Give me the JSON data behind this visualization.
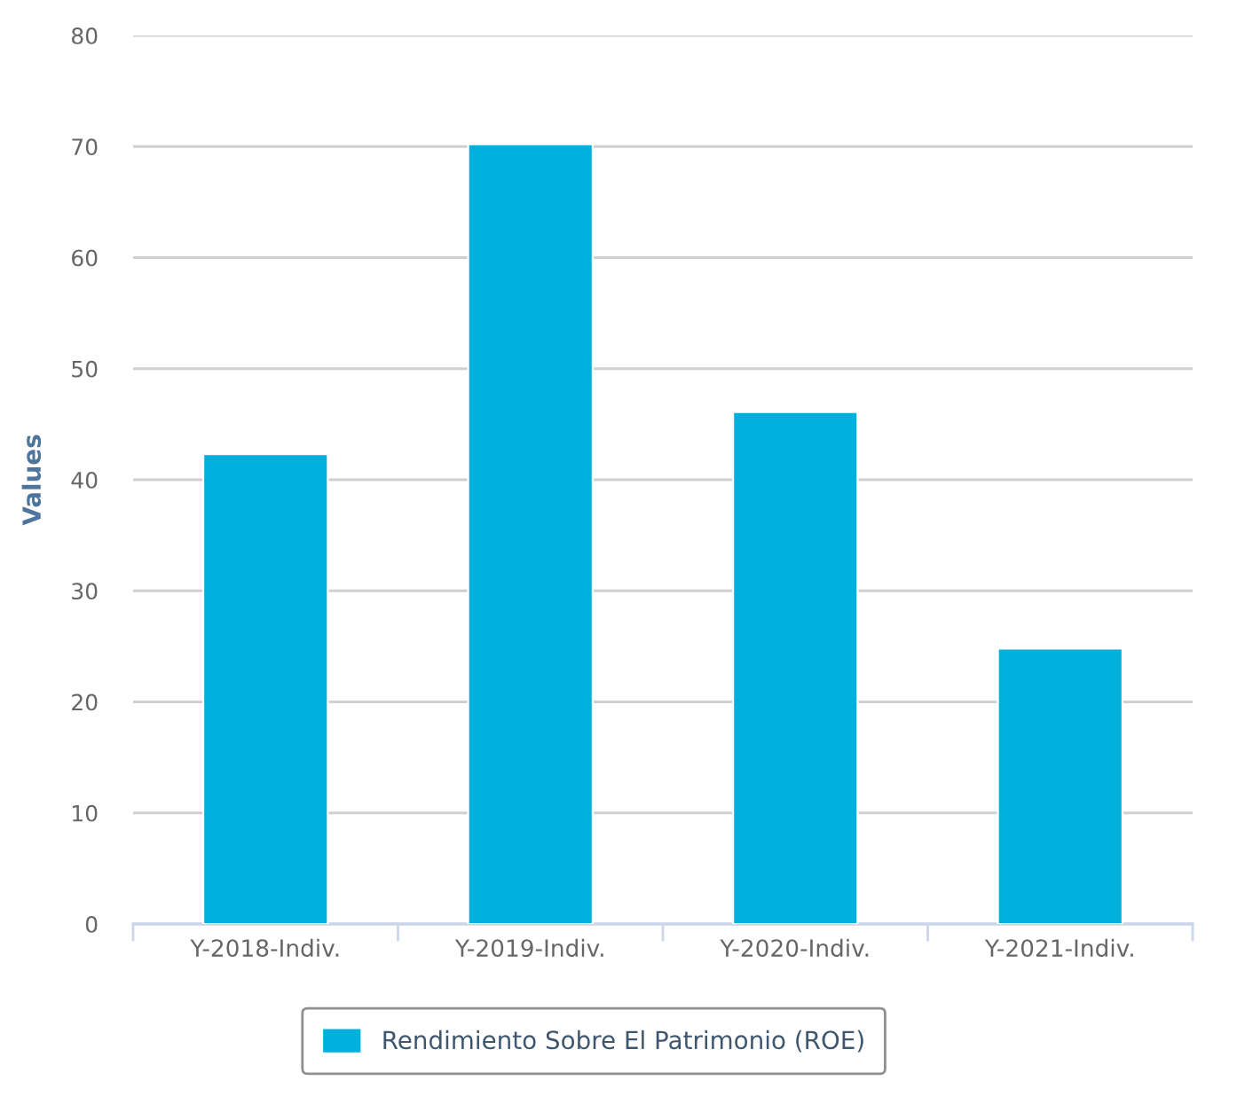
{
  "chart_data": {
    "type": "bar",
    "ylabel": "Values",
    "categories": [
      "Y-2018-Indiv.",
      "Y-2019-Indiv.",
      "Y-2020-Indiv.",
      "Y-2021-Indiv."
    ],
    "series": [
      {
        "name": "Rendimiento Sobre El Patrimonio (ROE)",
        "color": "#00b0dc",
        "values": [
          42.3,
          70.2,
          46.1,
          24.8
        ]
      }
    ],
    "ylim": [
      0,
      80
    ],
    "yticks": [
      0,
      10,
      20,
      30,
      40,
      50,
      60,
      70,
      80
    ],
    "grid": "y",
    "legend": "bottom"
  }
}
